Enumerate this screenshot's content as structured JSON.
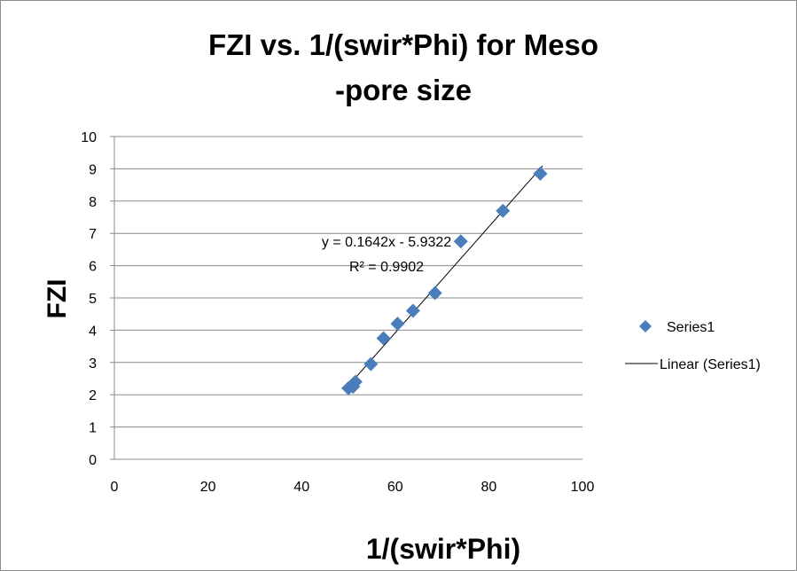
{
  "chart_data": {
    "type": "scatter",
    "title_lines": [
      "FZI vs. 1/(swir*Phi) for Meso",
      "-pore size"
    ],
    "xlabel": "1/(swir*Phi)",
    "ylabel": "FZI",
    "xlim": [
      0,
      100
    ],
    "ylim": [
      0,
      10
    ],
    "x_ticks": [
      "0",
      "20",
      "40",
      "60",
      "80",
      "100"
    ],
    "y_ticks": [
      "0",
      "1",
      "2",
      "3",
      "4",
      "5",
      "6",
      "7",
      "8",
      "9",
      "10"
    ],
    "grid": true,
    "legend_position": "right",
    "series": [
      {
        "name": "Series1",
        "marker": "diamond",
        "color": "#4a7ebb",
        "x": [
          50.0,
          51.0,
          51.5,
          54.8,
          57.5,
          60.5,
          63.8,
          68.5,
          74.0,
          83.0,
          91.0
        ],
        "y": [
          2.2,
          2.25,
          2.4,
          2.95,
          3.75,
          4.2,
          4.6,
          5.15,
          6.75,
          7.7,
          8.85
        ]
      }
    ],
    "trendline": {
      "name": "Linear (Series1)",
      "slope": 0.1642,
      "intercept": -5.9322,
      "x_range": [
        49.5,
        91.5
      ],
      "color": "#000000",
      "equation": "y = 0.1642x - 5.9322",
      "r_squared": "R² = 0.9902"
    }
  }
}
